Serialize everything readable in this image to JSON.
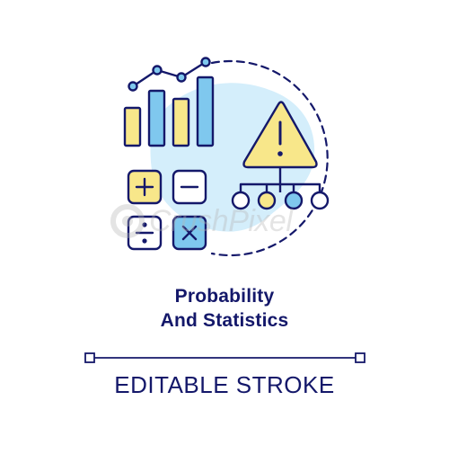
{
  "title": {
    "line1": "Probability",
    "line2": "And Statistics"
  },
  "caption": "EDITABLE STROKE",
  "watermark": "CrushPixel",
  "icons": [
    "bar-chart-icon",
    "trend-line-icon",
    "plus-icon",
    "minus-icon",
    "divide-icon",
    "multiply-icon",
    "warning-icon",
    "decision-tree-icon"
  ],
  "colors": {
    "outline": "#14186a",
    "fill_yellow": "#f8e78a",
    "fill_blue": "#7fc8ee",
    "background_blob": "#d4eefb",
    "node_blue": "#7fc8ee"
  }
}
